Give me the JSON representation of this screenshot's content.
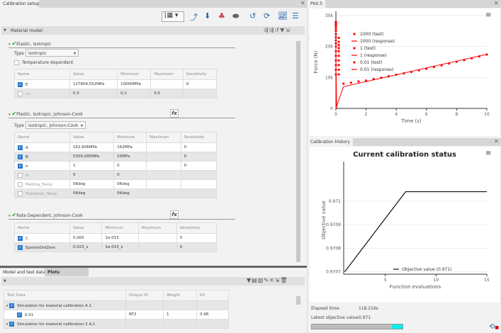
{
  "left_panel": {
    "tab": "Calibration setup",
    "toolbar_icons": [
      "curve-table-icon",
      "dropdown-icon",
      "curve-fit-icon",
      "import-icon",
      "material-icon",
      "mesh-icon",
      "undo-icon",
      "run-icon",
      "plot-icon",
      "table-icon"
    ],
    "material_model": "Material model",
    "header_icons": [
      "expand-all-icon",
      "collapse-all-icon",
      "reset-icon",
      "filter-icon",
      "export-icon"
    ],
    "columns": [
      "Name",
      "Value",
      "Minimum",
      "Maximum",
      "Sensitivity"
    ],
    "elastic": {
      "title": "Elastic, Isotropic",
      "type_label": "Type",
      "type": "Isotropic",
      "temp_dep": "Temperature dependent",
      "rows": [
        {
          "checked": true,
          "name": "E",
          "value": "127804,552MPa",
          "min": "10000MPa",
          "max": "",
          "sens": "0"
        },
        {
          "checked": false,
          "name": "nu",
          "value": "0,3",
          "min": "0,1",
          "max": "0,5",
          "sens": ""
        }
      ]
    },
    "plastic": {
      "title": "Plastic, Isotropic, Johnson-Cook",
      "type_label": "Type",
      "type": "Isotropic, Johnson-Cook",
      "fx": "fx",
      "rows": [
        {
          "checked": true,
          "name": "A",
          "value": "162,606MPa",
          "min": "162MPa",
          "max": "",
          "sens": "0"
        },
        {
          "checked": true,
          "name": "B",
          "value": "5300,095MPa",
          "min": "10MPa",
          "max": "",
          "sens": "0"
        },
        {
          "checked": true,
          "name": "n",
          "value": "1",
          "min": "0",
          "max": "",
          "sens": "0"
        },
        {
          "checked": false,
          "name": "m",
          "value": "0",
          "min": "0",
          "max": "",
          "sens": ""
        },
        {
          "checked": false,
          "name": "Melting_Temp",
          "value": "0Kdeg",
          "min": "0Kdeg",
          "max": "",
          "sens": ""
        },
        {
          "checked": false,
          "name": "Transition_Temp",
          "value": "0Kdeg",
          "min": "0Kdeg",
          "max": "",
          "sens": ""
        }
      ]
    },
    "rate": {
      "title": "Rate Dependent, Johnson-Cook",
      "fx": "fx",
      "rows": [
        {
          "checked": true,
          "name": "C",
          "value": "0,065",
          "min": "1e-015",
          "max": "",
          "sens": "0"
        },
        {
          "checked": true,
          "name": "EpsilonDotZero",
          "value": "0,023_s",
          "min": "1e-015_s",
          "max": "",
          "sens": "0"
        }
      ]
    }
  },
  "bottom_panel": {
    "tabs": [
      "Model and test data",
      "Plots"
    ],
    "toolbar_icons": [
      "filter-icon",
      "folder-icon",
      "columns-icon",
      "edit-icon",
      "shuffle-icon",
      "export-icon",
      "delete-icon"
    ],
    "columns": [
      "Test Data",
      "Output ID",
      "Weight",
      "R2"
    ],
    "rows": [
      {
        "level": 0,
        "checked": true,
        "name": "Simulation for material calibration A.1",
        "output": "",
        "weight": "",
        "r2": ""
      },
      {
        "level": 1,
        "checked": true,
        "name": "0.01",
        "output": "RF2",
        "weight": "1",
        "r2": "0,98"
      },
      {
        "level": 0,
        "checked": true,
        "name": "Simulation for material calibration-2 A.1",
        "output": "",
        "weight": "",
        "r2": ""
      }
    ]
  },
  "plot_panel": {
    "tab": "Plot.5"
  },
  "history_panel": {
    "tab": "Calibration History",
    "elapsed_label": "Elapsed time:",
    "elapsed": "118.216s",
    "latest_label": "Latest objective value:",
    "latest": "0.971",
    "progress": 0.88
  },
  "chart_data": [
    {
      "type": "line",
      "xlabel": "Time (s)",
      "ylabel": "Force (N)",
      "xlim": [
        0,
        10
      ],
      "ylim": [
        0,
        30000
      ],
      "xticks": [
        "0",
        "2",
        "4",
        "6",
        "8",
        "10"
      ],
      "yticks": [
        "0",
        "10k",
        "20k",
        "30k"
      ],
      "legend": "top-left",
      "color": "#ff0000",
      "series": [
        {
          "name": "1000 (test)",
          "kind": "scatter",
          "x": [
            0,
            0,
            0,
            0,
            0,
            0,
            0,
            0,
            0,
            0,
            0,
            0,
            0,
            0,
            0,
            0,
            0,
            0
          ],
          "y": [
            11000,
            12500,
            14000,
            15500,
            17000,
            18500,
            20000,
            21000,
            22000,
            23000,
            24000,
            25000,
            25800,
            26500,
            27000,
            27500,
            27800,
            28000
          ]
        },
        {
          "name": "1000 (response)",
          "kind": "line",
          "x": [
            0,
            0,
            0.01
          ],
          "y": [
            0,
            21000,
            0
          ]
        },
        {
          "name": "1 (test)",
          "kind": "scatter",
          "x": [
            0.05,
            0.05,
            0.05,
            0.05,
            0.05,
            0.05,
            0.05,
            0.05,
            0.05,
            0.05
          ],
          "y": [
            11000,
            12500,
            14000,
            15500,
            17000,
            18500,
            19500,
            20500,
            21500,
            22800
          ]
        },
        {
          "name": "1 (response)",
          "kind": "line",
          "x": [
            0,
            0.02,
            0.05
          ],
          "y": [
            0,
            11000,
            0
          ]
        },
        {
          "name": "0.01 (test)",
          "kind": "scatter",
          "x": [
            0.5,
            1,
            1.5,
            2,
            2.5,
            3,
            3.5,
            4,
            4.5,
            5,
            5.5,
            6,
            6.5,
            7,
            7.5,
            8,
            8.5,
            9,
            9.5,
            10
          ],
          "y": [
            8000,
            8300,
            8700,
            9000,
            9500,
            9900,
            10400,
            10900,
            11300,
            11800,
            12300,
            12800,
            13400,
            13900,
            14500,
            15100,
            15600,
            16200,
            16800,
            17400
          ]
        },
        {
          "name": "0.01 (response)",
          "kind": "line",
          "x": [
            0,
            0.5,
            10
          ],
          "y": [
            0,
            7000,
            17500
          ]
        }
      ]
    },
    {
      "type": "line",
      "title": "Current calibration status",
      "xlabel": "Function evaluations",
      "ylabel": "Objective value",
      "xlim": [
        0.9,
        15
      ],
      "ylim": [
        0.97069,
        0.97115
      ],
      "xticks": [
        "5",
        "10",
        "15"
      ],
      "yticks": [
        "0.9707",
        "0.9708",
        "0.9709",
        "0.971"
      ],
      "legend": "bottom-center",
      "color": "#111111",
      "series": [
        {
          "name": "Objective value (0.971)",
          "x": [
            1,
            7,
            15
          ],
          "y": [
            0.9707,
            0.97104,
            0.97104
          ]
        }
      ]
    }
  ]
}
